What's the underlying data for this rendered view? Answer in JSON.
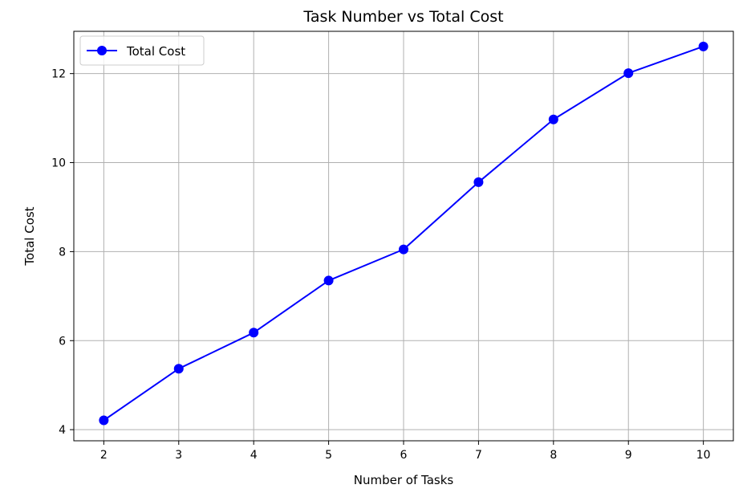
{
  "chart_data": {
    "type": "line",
    "title": "Task Number vs Total Cost",
    "xlabel": "Number of Tasks",
    "ylabel": "Total Cost",
    "x": [
      2,
      3,
      4,
      5,
      6,
      7,
      8,
      9,
      10
    ],
    "xticks": [
      "2",
      "3",
      "4",
      "5",
      "6",
      "7",
      "8",
      "9",
      "10"
    ],
    "yticks": [
      "4",
      "6",
      "8",
      "10",
      "12"
    ],
    "xlim": [
      1.6,
      10.4
    ],
    "ylim": [
      3.75,
      12.95
    ],
    "grid": true,
    "legend_position": "top-left",
    "series": [
      {
        "name": "Total Cost",
        "color": "#0000ff",
        "marker": "circle",
        "values": [
          4.21,
          5.37,
          6.18,
          7.35,
          8.05,
          9.56,
          10.97,
          12.01,
          12.61
        ]
      }
    ]
  }
}
